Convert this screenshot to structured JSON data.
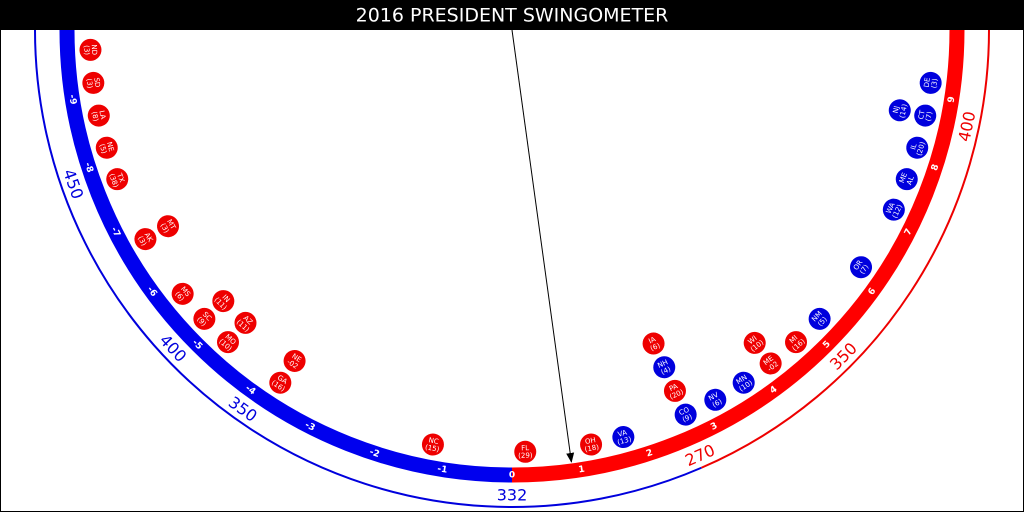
{
  "title": "2016 PRESIDENT SWINGOMETER",
  "scale": {
    "ticks": [
      -9,
      -8,
      -7,
      -6,
      -5,
      -4,
      -3,
      -2,
      -1,
      0,
      1,
      2,
      3,
      4,
      5,
      6,
      7,
      8,
      9
    ],
    "needle": 0.87,
    "left_color": "#0000ee",
    "right_color": "#ff0000"
  },
  "tipping_swing": 2.6,
  "electoral_labels": [
    {
      "votes": 450,
      "swing": -7.85,
      "color": "#0000dd"
    },
    {
      "votes": 400,
      "swing": -5.2,
      "color": "#0000dd"
    },
    {
      "votes": 350,
      "swing": -3.93,
      "color": "#0000dd"
    },
    {
      "votes": 332,
      "swing": 0,
      "color": "#0000dd"
    },
    {
      "votes": 270,
      "swing": 2.65,
      "color": "#ee0000"
    },
    {
      "votes": 350,
      "swing": 5.05,
      "color": "#ee0000"
    },
    {
      "votes": 400,
      "swing": 8.67,
      "color": "#ee0000"
    }
  ],
  "states": [
    {
      "top": "FL",
      "bottom": "(29)",
      "swing": 0.2,
      "color": "#ee0000"
    },
    {
      "top": "OH",
      "bottom": "(18)",
      "swing": 1.2,
      "color": "#ee0000"
    },
    {
      "top": "VA",
      "bottom": "(13)",
      "swing": 1.7,
      "color": "#0000dd"
    },
    {
      "top": "CO",
      "bottom": "(9)",
      "swing": 2.7,
      "color": "#0000dd"
    },
    {
      "top": "PA",
      "bottom": "(20)",
      "swing": 2.7,
      "color": "#ee0000"
    },
    {
      "top": "NH",
      "bottom": "(4)",
      "swing": 2.7,
      "color": "#0000dd"
    },
    {
      "top": "IA",
      "bottom": "(6)",
      "swing": 2.7,
      "color": "#ee0000"
    },
    {
      "top": "NV",
      "bottom": "(6)",
      "swing": 3.2,
      "color": "#0000dd"
    },
    {
      "top": "MN",
      "bottom": "(10)",
      "swing": 3.7,
      "color": "#0000dd"
    },
    {
      "top": "ME",
      "bottom": "-02",
      "swing": 4.2,
      "color": "#ee0000"
    },
    {
      "top": "WI",
      "bottom": "(10)",
      "swing": 4.2,
      "color": "#ee0000"
    },
    {
      "top": "MI",
      "bottom": "(16)",
      "swing": 4.7,
      "color": "#ee0000"
    },
    {
      "top": "NM",
      "bottom": "(5)",
      "swing": 5.2,
      "color": "#0000dd"
    },
    {
      "top": "OR",
      "bottom": "(7)",
      "swing": 6.2,
      "color": "#0000dd"
    },
    {
      "top": "WA",
      "bottom": "(12)",
      "swing": 7.2,
      "color": "#0000dd"
    },
    {
      "top": "ME",
      "bottom": "AL",
      "swing": 7.7,
      "color": "#0000dd"
    },
    {
      "top": "IL",
      "bottom": "(20)",
      "swing": 8.2,
      "color": "#0000dd"
    },
    {
      "top": "CT",
      "bottom": "(7)",
      "swing": 8.7,
      "color": "#0000dd"
    },
    {
      "top": "NJ",
      "bottom": "(14)",
      "swing": 8.7,
      "color": "#0000dd"
    },
    {
      "top": "DE",
      "bottom": "(3)",
      "swing": 9.2,
      "color": "#0000dd"
    },
    {
      "top": "NC",
      "bottom": "(15)",
      "swing": -1.2,
      "color": "#ee0000"
    },
    {
      "top": "GA",
      "bottom": "(16)",
      "swing": -3.7,
      "color": "#ee0000"
    },
    {
      "top": "NE",
      "bottom": "-02",
      "swing": -3.7,
      "color": "#ee0000"
    },
    {
      "top": "MO",
      "bottom": "(10)",
      "swing": -4.7,
      "color": "#ee0000"
    },
    {
      "top": "AZ",
      "bottom": "(11)",
      "swing": -4.7,
      "color": "#ee0000"
    },
    {
      "top": "SC",
      "bottom": "(9)",
      "swing": -5.2,
      "color": "#ee0000"
    },
    {
      "top": "IN",
      "bottom": "(11)",
      "swing": -5.2,
      "color": "#ee0000"
    },
    {
      "top": "MS",
      "bottom": "(6)",
      "swing": -5.7,
      "color": "#ee0000"
    },
    {
      "top": "AK",
      "bottom": "(3)",
      "swing": -6.7,
      "color": "#ee0000"
    },
    {
      "top": "MT",
      "bottom": "(3)",
      "swing": -6.7,
      "color": "#ee0000"
    },
    {
      "top": "TX",
      "bottom": "(38)",
      "swing": -7.7,
      "color": "#ee0000"
    },
    {
      "top": "NE",
      "bottom": "(5)",
      "swing": -8.2,
      "color": "#ee0000"
    },
    {
      "top": "LA",
      "bottom": "(8)",
      "swing": -8.7,
      "color": "#ee0000"
    },
    {
      "top": "SD",
      "bottom": "(3)",
      "swing": -9.2,
      "color": "#ee0000"
    },
    {
      "top": "ND",
      "bottom": "(3)",
      "swing": -9.7,
      "color": "#ee0000"
    }
  ]
}
